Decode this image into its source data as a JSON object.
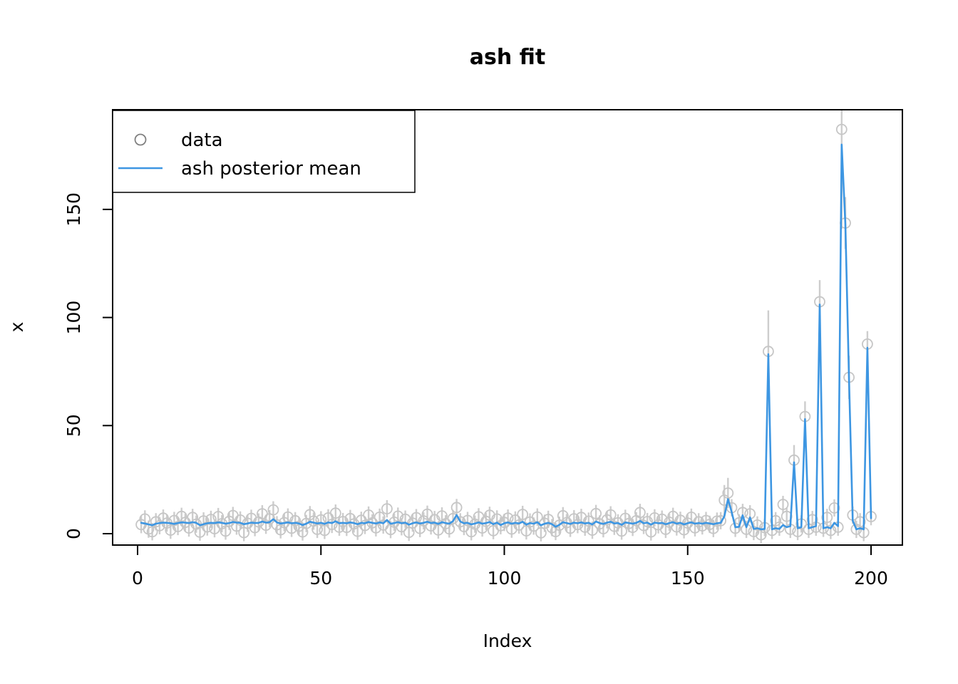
{
  "chart_data": {
    "type": "scatter+line",
    "title": "ash fit",
    "xlabel": "Index",
    "ylabel": "x",
    "x_ticks": [
      0,
      50,
      100,
      150,
      200
    ],
    "y_ticks": [
      0,
      50,
      100,
      150
    ],
    "xlim": [
      1,
      200
    ],
    "ylim": [
      -2,
      196
    ],
    "grid": false,
    "legend_position": "top-left",
    "legend": [
      {
        "label": "data",
        "marker": "open-circle",
        "color": "#c6c6c6",
        "legend_marker_color": "#808080"
      },
      {
        "label": "ash posterior mean",
        "marker": "line",
        "color": "#3d96e2"
      }
    ],
    "point_color": "#c6c6c6",
    "errorbar_color": "#cdcdcd",
    "line_color": "#3d96e2",
    "x": [
      1,
      2,
      3,
      4,
      5,
      6,
      7,
      8,
      9,
      10,
      11,
      12,
      13,
      14,
      15,
      16,
      17,
      18,
      19,
      20,
      21,
      22,
      23,
      24,
      25,
      26,
      27,
      28,
      29,
      30,
      31,
      32,
      33,
      34,
      35,
      36,
      37,
      38,
      39,
      40,
      41,
      42,
      43,
      44,
      45,
      46,
      47,
      48,
      49,
      50,
      51,
      52,
      53,
      54,
      55,
      56,
      57,
      58,
      59,
      60,
      61,
      62,
      63,
      64,
      65,
      66,
      67,
      68,
      69,
      70,
      71,
      72,
      73,
      74,
      75,
      76,
      77,
      78,
      79,
      80,
      81,
      82,
      83,
      84,
      85,
      86,
      87,
      88,
      89,
      90,
      91,
      92,
      93,
      94,
      95,
      96,
      97,
      98,
      99,
      100,
      101,
      102,
      103,
      104,
      105,
      106,
      107,
      108,
      109,
      110,
      111,
      112,
      113,
      114,
      115,
      116,
      117,
      118,
      119,
      120,
      121,
      122,
      123,
      124,
      125,
      126,
      127,
      128,
      129,
      130,
      131,
      132,
      133,
      134,
      135,
      136,
      137,
      138,
      139,
      140,
      141,
      142,
      143,
      144,
      145,
      146,
      147,
      148,
      149,
      150,
      151,
      152,
      153,
      154,
      155,
      156,
      157,
      158,
      159,
      160,
      161,
      162,
      163,
      164,
      165,
      166,
      167,
      168,
      169,
      170,
      171,
      172,
      173,
      174,
      175,
      176,
      177,
      178,
      179,
      180,
      181,
      182,
      183,
      184,
      185,
      186,
      187,
      188,
      189,
      190,
      191,
      192,
      193,
      194,
      195,
      196,
      197,
      198,
      199,
      200
    ],
    "series": [
      {
        "name": "data",
        "values": [
          4.2,
          6.8,
          2.1,
          0.9,
          5.5,
          3.7,
          7.2,
          4.9,
          1.6,
          6.1,
          3.3,
          8.0,
          5.2,
          2.6,
          7.5,
          4.4,
          0.7,
          5.9,
          3.1,
          6.6,
          2.3,
          7.9,
          4.6,
          1.2,
          5.7,
          8.4,
          3.5,
          6.3,
          0.5,
          4.8,
          7.1,
          2.8,
          5.4,
          9.2,
          3.9,
          6.9,
          11.0,
          4.1,
          1.8,
          5.1,
          7.7,
          2.5,
          6.0,
          3.4,
          0.8,
          4.7,
          8.8,
          5.8,
          2.0,
          6.4,
          1.5,
          7.3,
          4.3,
          9.5,
          3.0,
          5.6,
          2.9,
          7.0,
          4.5,
          1.1,
          6.2,
          3.8,
          8.6,
          5.0,
          2.7,
          7.6,
          4.0,
          11.5,
          1.9,
          5.3,
          8.1,
          3.2,
          6.7,
          0.6,
          4.9,
          7.4,
          2.4,
          5.9,
          9.0,
          3.6,
          6.5,
          1.7,
          8.2,
          4.6,
          2.2,
          7.0,
          12.1,
          5.5,
          3.3,
          6.1,
          0.9,
          4.4,
          7.8,
          2.6,
          5.7,
          8.5,
          1.4,
          6.8,
          3.7,
          5.2,
          7.2,
          2.1,
          6.3,
          4.0,
          8.9,
          1.3,
          5.4,
          3.5,
          7.7,
          0.4,
          4.8,
          6.6,
          2.8,
          1.0,
          3.9,
          8.3,
          5.1,
          2.5,
          6.9,
          4.2,
          7.5,
          3.0,
          5.8,
          1.6,
          9.3,
          4.5,
          2.3,
          6.4,
          8.7,
          3.4,
          5.0,
          1.2,
          7.1,
          4.7,
          2.9,
          6.0,
          9.8,
          3.8,
          5.6,
          0.8,
          7.3,
          4.1,
          6.7,
          2.0,
          5.3,
          8.0,
          3.1,
          6.2,
          1.8,
          4.9,
          7.6,
          2.7,
          5.5,
          3.6,
          6.1,
          4.3,
          2.4,
          5.8,
          6.0,
          15.5,
          18.8,
          12.0,
          2.5,
          5.0,
          9.8,
          2.0,
          9.2,
          1.0,
          4.0,
          -0.5,
          2.8,
          84.3,
          1.5,
          6.0,
          3.0,
          13.5,
          8.0,
          2.0,
          34.0,
          1.0,
          4.5,
          54.2,
          2.0,
          6.5,
          3.0,
          107.3,
          2.5,
          7.5,
          1.5,
          11.9,
          3.0,
          187.0,
          143.7,
          72.3,
          8.6,
          2.0,
          5.5,
          0.5,
          87.7,
          7.9
        ]
      },
      {
        "name": "ash posterior mean",
        "values": [
          5.0,
          4.7,
          4.3,
          3.9,
          4.6,
          4.9,
          5.1,
          5.0,
          4.8,
          4.5,
          4.9,
          5.2,
          5.1,
          4.9,
          5.3,
          5.0,
          3.9,
          4.4,
          4.8,
          5.0,
          4.9,
          5.2,
          5.0,
          4.6,
          4.9,
          5.4,
          5.1,
          5.0,
          4.4,
          4.7,
          5.1,
          4.9,
          5.0,
          5.6,
          5.1,
          5.3,
          6.7,
          5.2,
          4.7,
          4.9,
          5.2,
          4.8,
          5.0,
          4.7,
          4.0,
          4.6,
          5.5,
          5.1,
          4.7,
          5.0,
          4.5,
          5.2,
          4.9,
          5.7,
          4.8,
          5.0,
          4.8,
          5.2,
          4.9,
          4.4,
          5.0,
          4.8,
          5.4,
          5.0,
          4.7,
          5.2,
          4.8,
          6.3,
          4.6,
          4.9,
          5.3,
          4.8,
          5.1,
          4.2,
          4.8,
          5.2,
          4.7,
          5.0,
          5.5,
          4.9,
          5.1,
          4.5,
          5.3,
          4.9,
          4.6,
          5.8,
          8.6,
          5.6,
          4.8,
          5.0,
          4.3,
          4.7,
          5.2,
          4.6,
          4.9,
          5.4,
          4.4,
          5.1,
          4.0,
          4.8,
          5.2,
          4.6,
          5.0,
          4.7,
          5.5,
          4.2,
          4.9,
          4.6,
          5.3,
          3.9,
          4.6,
          5.0,
          4.4,
          3.2,
          4.1,
          5.3,
          4.9,
          4.5,
          5.1,
          4.8,
          5.2,
          4.7,
          5.0,
          4.3,
          5.6,
          4.9,
          4.5,
          5.1,
          5.5,
          4.7,
          4.9,
          4.1,
          5.2,
          4.9,
          4.6,
          5.0,
          5.9,
          4.8,
          5.1,
          4.2,
          5.1,
          4.8,
          5.0,
          4.4,
          4.9,
          5.3,
          4.6,
          5.0,
          4.3,
          4.8,
          5.2,
          4.6,
          4.9,
          4.6,
          5.0,
          4.7,
          4.4,
          4.8,
          5.0,
          8.0,
          16.0,
          10.0,
          3.0,
          3.2,
          8.5,
          3.0,
          7.5,
          2.2,
          2.5,
          2.0,
          2.2,
          83.0,
          2.0,
          2.5,
          2.2,
          4.0,
          3.0,
          3.5,
          33.0,
          2.5,
          3.0,
          53.0,
          2.5,
          3.0,
          3.5,
          106.0,
          2.5,
          3.0,
          2.5,
          5.0,
          3.5,
          180.0,
          143.0,
          71.5,
          6.0,
          2.0,
          2.5,
          2.0,
          86.0,
          7.2
        ]
      }
    ],
    "error_bars": {
      "default_half_width": 4.0,
      "overrides": {
        "160": 7,
        "161": 7,
        "172": 19,
        "179": 7,
        "182": 7,
        "186": 10,
        "192": 46,
        "193": 12,
        "194": 10,
        "199": 6
      }
    }
  }
}
